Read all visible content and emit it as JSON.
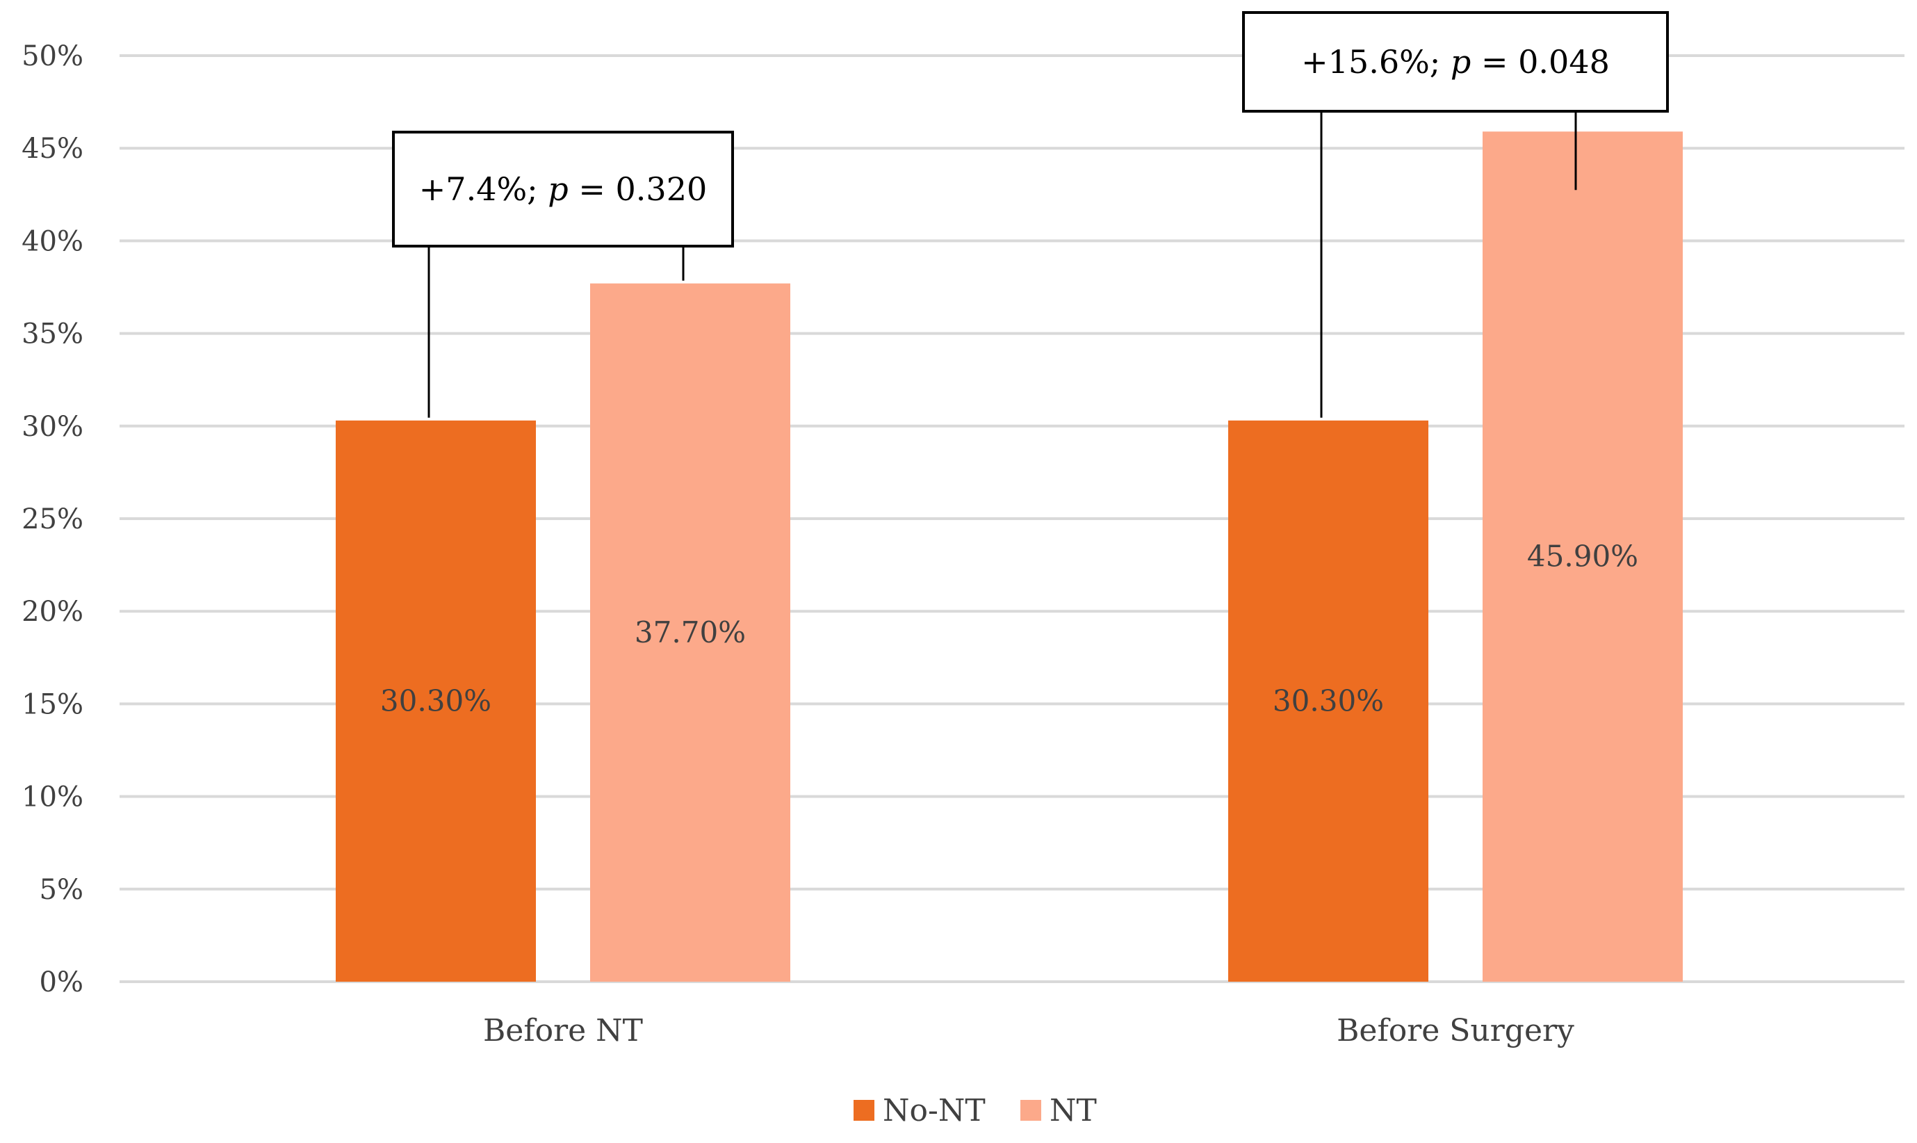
{
  "chart_data": {
    "type": "bar",
    "categories": [
      "Before NT",
      "Before Surgery"
    ],
    "series": [
      {
        "name": "No-NT",
        "values": [
          30.3,
          30.3
        ],
        "labels": [
          "30.30%",
          "30.30%"
        ],
        "color": "#ED6D21"
      },
      {
        "name": "NT",
        "values": [
          37.7,
          45.9
        ],
        "labels": [
          "37.70%",
          "45.90%"
        ],
        "color": "#FCA98A"
      }
    ],
    "ylim": [
      0,
      50
    ],
    "y_ticks": [
      "0%",
      "5%",
      "10%",
      "15%",
      "20%",
      "25%",
      "30%",
      "35%",
      "40%",
      "45%",
      "50%"
    ],
    "grid": true,
    "legend_position": "bottom-center",
    "annotations": [
      {
        "category": "Before NT",
        "diff": "+7.4%; ",
        "p_symbol": "p",
        "p_value": " = 0.320"
      },
      {
        "category": "Before Surgery",
        "diff": "+15.6%; ",
        "p_symbol": "p",
        "p_value": " = 0.048"
      }
    ],
    "title": "",
    "xlabel": "",
    "ylabel": ""
  }
}
